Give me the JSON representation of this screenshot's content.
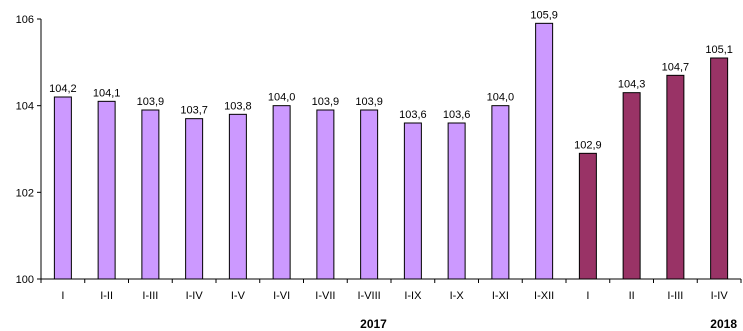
{
  "chart_data": {
    "type": "bar",
    "ylim": [
      100,
      106
    ],
    "yticks": [
      "100",
      "102",
      "104",
      "106"
    ],
    "categories": [
      "I",
      "I-II",
      "I-III",
      "I-IV",
      "I-V",
      "I-VI",
      "I-VII",
      "I-VIII",
      "I-IX",
      "I-X",
      "I-XI",
      "I-XII",
      "I",
      "II",
      "I-III",
      "I-IV"
    ],
    "values": [
      104.2,
      104.1,
      103.9,
      103.7,
      103.8,
      104.0,
      103.9,
      103.9,
      103.6,
      103.6,
      104.0,
      105.9,
      102.9,
      104.3,
      104.7,
      105.1
    ],
    "value_labels": [
      "104,2",
      "104,1",
      "103,9",
      "103,7",
      "103,8",
      "104,0",
      "103,9",
      "103,9",
      "103,6",
      "103,6",
      "104,0",
      "105,9",
      "102,9",
      "104,3",
      "104,7",
      "105,1"
    ],
    "groups": [
      {
        "label": "2017",
        "count": 12,
        "color": "#cc99ff"
      },
      {
        "label": "2018",
        "count": 4,
        "color": "#993366"
      }
    ],
    "grid": false,
    "legend": "none"
  }
}
